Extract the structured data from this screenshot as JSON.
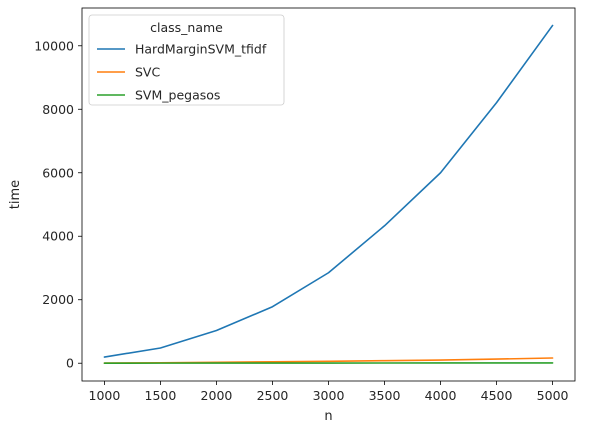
{
  "chart_data": {
    "type": "line",
    "xlabel": "n",
    "ylabel": "time",
    "x": [
      1000,
      1500,
      2000,
      2500,
      3000,
      3500,
      4000,
      4500,
      5000
    ],
    "xticks": [
      1000,
      1500,
      2000,
      2500,
      3000,
      3500,
      4000,
      4500,
      5000
    ],
    "yticks": [
      0,
      2000,
      4000,
      6000,
      8000,
      10000
    ],
    "xlim": [
      800,
      5200
    ],
    "ylim": [
      -560,
      11190
    ],
    "grid": false,
    "legend": {
      "title": "class_name",
      "placement": "top-left"
    },
    "series": [
      {
        "name": "HardMarginSVM_tfidf",
        "color": "#1f77b4",
        "values": [
          195,
          480,
          1030,
          1780,
          2850,
          4330,
          6000,
          8210,
          10640
        ]
      },
      {
        "name": "SVC",
        "color": "#ff7f0e",
        "values": [
          5,
          15,
          30,
          45,
          60,
          80,
          100,
          130,
          165
        ]
      },
      {
        "name": "SVM_pegasos",
        "color": "#2ca02c",
        "values": [
          2,
          3,
          4,
          5,
          6,
          7,
          8,
          9,
          10
        ]
      }
    ]
  }
}
